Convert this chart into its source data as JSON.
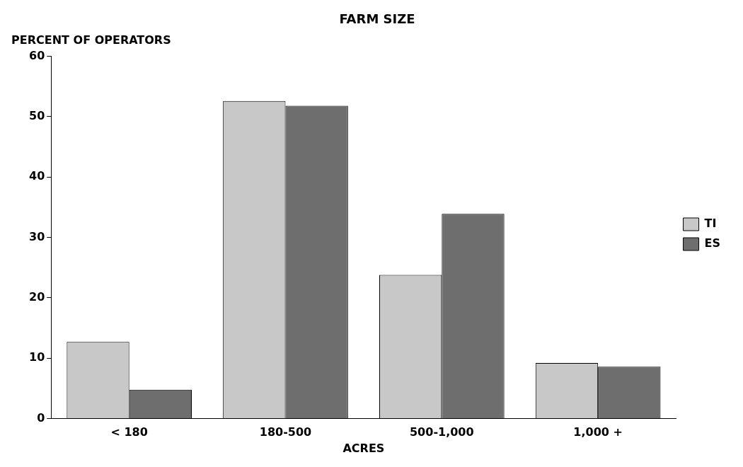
{
  "chart_data": {
    "type": "bar",
    "title": "FARM SIZE",
    "xlabel": "ACRES",
    "ylabel": "PERCENT OF OPERATORS",
    "categories": [
      "< 180",
      "180-500",
      "500-1,000",
      "1,000 +"
    ],
    "series": [
      {
        "name": "TI",
        "color": "#c8c8c8",
        "values": [
          12.7,
          52.6,
          23.8,
          9.2
        ]
      },
      {
        "name": "ES",
        "color": "#6e6e6e",
        "values": [
          4.8,
          51.8,
          33.9,
          8.6
        ]
      }
    ],
    "ylim": [
      0,
      60
    ],
    "yticks": [
      0,
      10,
      20,
      30,
      40,
      50,
      60
    ],
    "grid": false,
    "legend": "right"
  }
}
